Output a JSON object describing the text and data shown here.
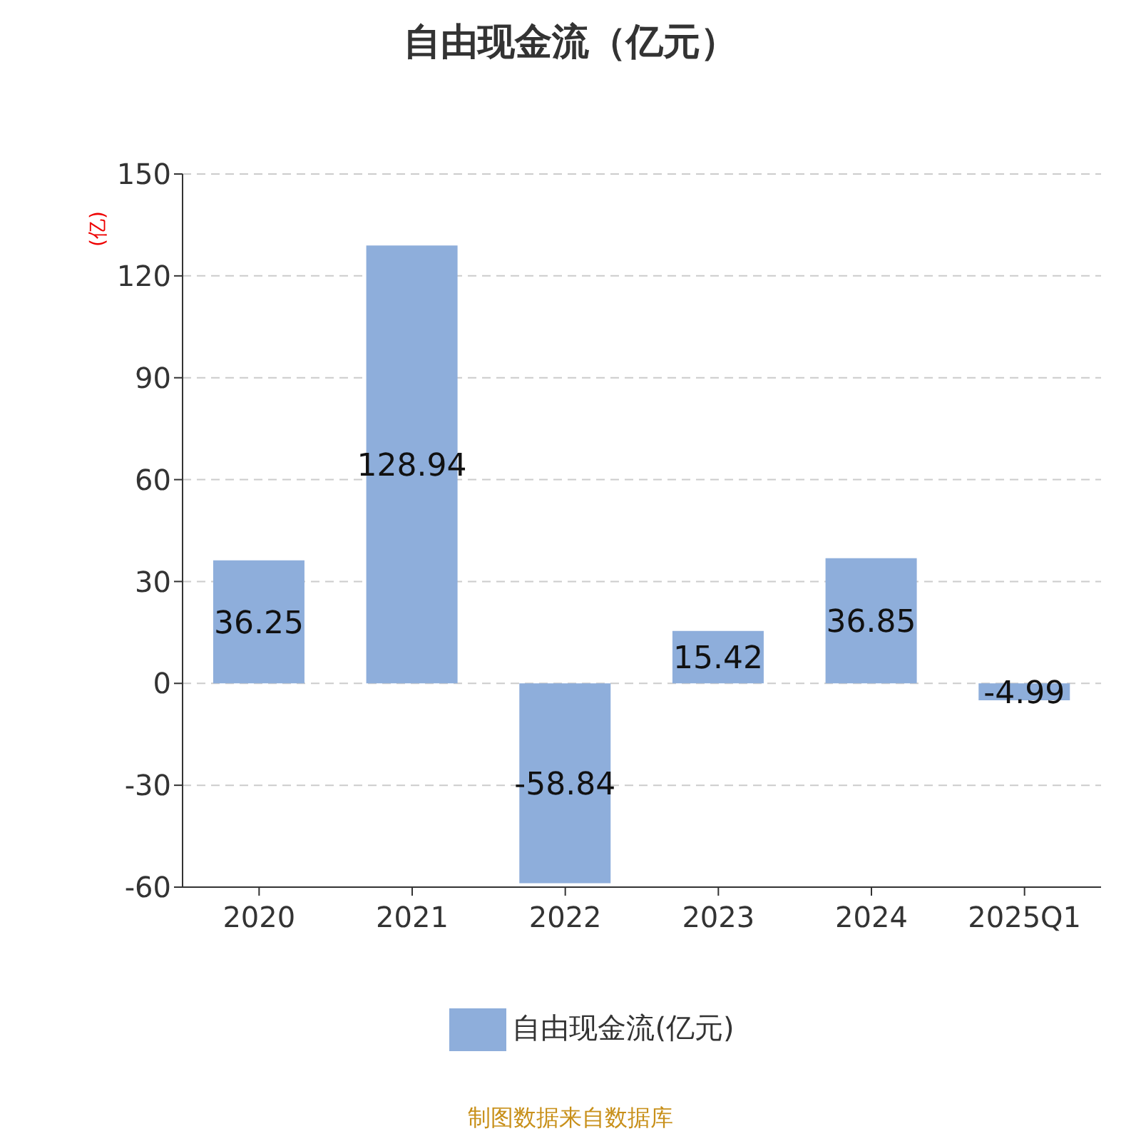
{
  "chart_data": {
    "type": "bar",
    "title": "自由现金流（亿元）",
    "ylabel": "(亿)",
    "categories": [
      "2020",
      "2021",
      "2022",
      "2023",
      "2024",
      "2025Q1"
    ],
    "series": [
      {
        "name": "自由现金流(亿元)",
        "color": "#8eaedb",
        "values": [
          36.25,
          128.94,
          -58.84,
          15.42,
          36.85,
          -4.99
        ]
      }
    ],
    "ylim": [
      -60,
      150
    ],
    "yticks": [
      -60,
      -30,
      0,
      30,
      60,
      90,
      120,
      150
    ],
    "grid": "y",
    "legend": "bottom",
    "data_labels": true,
    "annotations": [
      "制图数据来自数据库"
    ]
  }
}
